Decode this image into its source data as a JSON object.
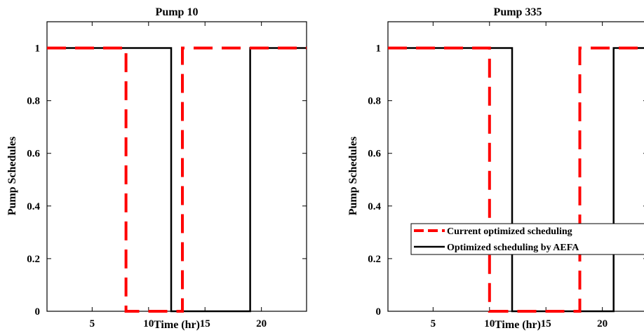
{
  "chart_data": [
    {
      "type": "line",
      "title": "Pump 10",
      "xlabel": "Time (hr)",
      "ylabel": "Pump Schedules",
      "xlim": [
        1,
        24
      ],
      "ylim": [
        0,
        1.1
      ],
      "xticks": [
        5,
        10,
        15,
        20
      ],
      "yticks": [
        0,
        0.2,
        0.4,
        0.6,
        0.8,
        1
      ],
      "ytick_labels": [
        "0",
        "0.2",
        "0.4",
        "0.6",
        "0.8",
        "1"
      ],
      "grid": false,
      "series": [
        {
          "name": "Current optimized scheduling",
          "color": "#ff0000",
          "style": "dashed",
          "x": [
            1,
            8,
            8,
            13,
            13,
            24
          ],
          "y": [
            1,
            1,
            0,
            0,
            1,
            1
          ]
        },
        {
          "name": "Optimized scheduling by AEFA",
          "color": "#000000",
          "style": "solid",
          "x": [
            1,
            12,
            12,
            19,
            19,
            24
          ],
          "y": [
            1,
            1,
            0,
            0,
            1,
            1
          ]
        }
      ]
    },
    {
      "type": "line",
      "title": "Pump 335",
      "xlabel": "Time (hr)",
      "ylabel": "Pump Schedules",
      "xlim": [
        1,
        24
      ],
      "ylim": [
        0,
        1.1
      ],
      "xticks": [
        5,
        10,
        15,
        20
      ],
      "yticks": [
        0,
        0.2,
        0.4,
        0.6,
        0.8,
        1
      ],
      "ytick_labels": [
        "0",
        "0.2",
        "0.4",
        "0.6",
        "0.8",
        "1"
      ],
      "grid": false,
      "legend": {
        "placement": "lower-right",
        "entries": [
          "Current optimized scheduling",
          "Optimized scheduling by AEFA"
        ]
      },
      "series": [
        {
          "name": "Current optimized scheduling",
          "color": "#ff0000",
          "style": "dashed",
          "x": [
            1,
            10,
            10,
            18,
            18,
            24
          ],
          "y": [
            1,
            1,
            0,
            0,
            1,
            1
          ]
        },
        {
          "name": "Optimized scheduling by AEFA",
          "color": "#000000",
          "style": "solid",
          "x": [
            1,
            12,
            12,
            21,
            21,
            24
          ],
          "y": [
            1,
            1,
            0,
            0,
            1,
            1
          ]
        }
      ]
    }
  ]
}
